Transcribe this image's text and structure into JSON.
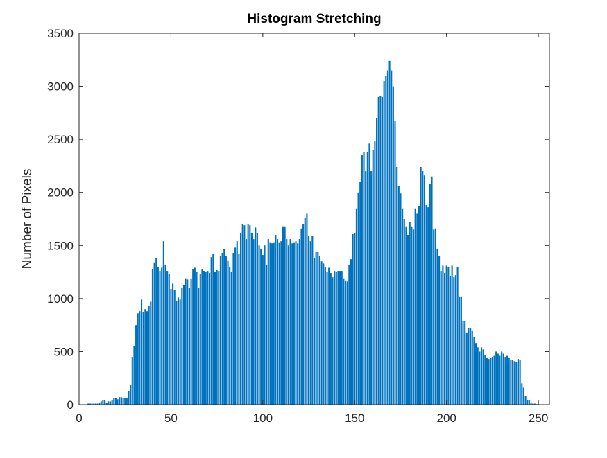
{
  "chart_data": {
    "type": "bar",
    "title": "Histogram Stretching",
    "y_label": "Number of Pixels",
    "color": "#0072bd",
    "x": [
      0,
      1,
      2,
      3,
      4,
      5,
      6,
      7,
      8,
      9,
      10,
      11,
      12,
      13,
      14,
      15,
      16,
      17,
      18,
      19,
      20,
      21,
      22,
      23,
      24,
      25,
      26,
      27,
      28,
      29,
      30,
      31,
      32,
      33,
      34,
      35,
      36,
      37,
      38,
      39,
      40,
      41,
      42,
      43,
      44,
      45,
      46,
      47,
      48,
      49,
      50,
      51,
      52,
      53,
      54,
      55,
      56,
      57,
      58,
      59,
      60,
      61,
      62,
      63,
      64,
      65,
      66,
      67,
      68,
      69,
      70,
      71,
      72,
      73,
      74,
      75,
      76,
      77,
      78,
      79,
      80,
      81,
      82,
      83,
      84,
      85,
      86,
      87,
      88,
      89,
      90,
      91,
      92,
      93,
      94,
      95,
      96,
      97,
      98,
      99,
      100,
      101,
      102,
      103,
      104,
      105,
      106,
      107,
      108,
      109,
      110,
      111,
      112,
      113,
      114,
      115,
      116,
      117,
      118,
      119,
      120,
      121,
      122,
      123,
      124,
      125,
      126,
      127,
      128,
      129,
      130,
      131,
      132,
      133,
      134,
      135,
      136,
      137,
      138,
      139,
      140,
      141,
      142,
      143,
      144,
      145,
      146,
      147,
      148,
      149,
      150,
      151,
      152,
      153,
      154,
      155,
      156,
      157,
      158,
      159,
      160,
      161,
      162,
      163,
      164,
      165,
      166,
      167,
      168,
      169,
      170,
      171,
      172,
      173,
      174,
      175,
      176,
      177,
      178,
      179,
      180,
      181,
      182,
      183,
      184,
      185,
      186,
      187,
      188,
      189,
      190,
      191,
      192,
      193,
      194,
      195,
      196,
      197,
      198,
      199,
      200,
      201,
      202,
      203,
      204,
      205,
      206,
      207,
      208,
      209,
      210,
      211,
      212,
      213,
      214,
      215,
      216,
      217,
      218,
      219,
      220,
      221,
      222,
      223,
      224,
      225,
      226,
      227,
      228,
      229,
      230,
      231,
      232,
      233,
      234,
      235,
      236,
      237,
      238,
      239,
      240,
      241,
      242,
      243,
      244,
      245,
      246,
      247,
      248,
      249,
      250,
      251,
      252,
      253,
      254,
      255
    ],
    "values": [
      0,
      0,
      0,
      0,
      0,
      10,
      10,
      10,
      10,
      10,
      10,
      20,
      30,
      40,
      40,
      20,
      30,
      30,
      40,
      60,
      60,
      50,
      70,
      70,
      60,
      60,
      60,
      130,
      190,
      450,
      550,
      750,
      860,
      880,
      990,
      870,
      900,
      880,
      930,
      970,
      1280,
      1340,
      1380,
      1300,
      1260,
      1290,
      1540,
      1320,
      1260,
      1230,
      1090,
      1140,
      1080,
      980,
      1010,
      990,
      1100,
      1130,
      1190,
      1180,
      1100,
      1190,
      1280,
      1290,
      1250,
      1100,
      1230,
      1280,
      1260,
      1250,
      1260,
      1240,
      1390,
      1420,
      1250,
      1270,
      1260,
      1400,
      1430,
      1470,
      1400,
      1360,
      1300,
      1250,
      1430,
      1480,
      1540,
      1420,
      1620,
      1700,
      1690,
      1560,
      1700,
      1690,
      1620,
      1560,
      1670,
      1620,
      1500,
      1470,
      1410,
      1500,
      1320,
      1560,
      1530,
      1520,
      1530,
      1600,
      1560,
      1530,
      1540,
      1680,
      1680,
      1560,
      1500,
      1560,
      1520,
      1530,
      1540,
      1520,
      1560,
      1660,
      1700,
      1760,
      1800,
      1590,
      1540,
      1590,
      1380,
      1440,
      1440,
      1400,
      1350,
      1330,
      1300,
      1250,
      1290,
      1240,
      1200,
      1260,
      1250,
      1260,
      1260,
      1260,
      1190,
      1170,
      1160,
      1320,
      1370,
      1610,
      1620,
      1850,
      2000,
      2100,
      2350,
      2380,
      2200,
      2380,
      2460,
      2200,
      2400,
      2480,
      2700,
      2900,
      2910,
      2900,
      3050,
      3100,
      3150,
      3240,
      3150,
      3000,
      2670,
      2240,
      2060,
      1990,
      1850,
      1750,
      1680,
      1600,
      1720,
      1680,
      1650,
      1850,
      1800,
      1870,
      2240,
      2200,
      2160,
      1880,
      1860,
      2080,
      2150,
      1650,
      1660,
      1470,
      1400,
      1260,
      1310,
      1240,
      1310,
      1300,
      1210,
      1310,
      1200,
      1220,
      1300,
      1020,
      1020,
      790,
      790,
      680,
      720,
      720,
      700,
      640,
      580,
      540,
      500,
      540,
      520,
      470,
      440,
      430,
      440,
      450,
      460,
      500,
      480,
      460,
      500,
      480,
      450,
      460,
      440,
      420,
      420,
      410,
      400,
      430,
      420,
      200,
      160,
      80,
      40,
      40,
      20,
      10,
      10,
      5,
      5,
      0,
      0,
      0,
      0,
      0
    ],
    "xlim": [
      0,
      256
    ],
    "xticks": [
      0,
      50,
      100,
      150,
      200,
      250
    ],
    "ylim": [
      0,
      3500
    ],
    "yticks": [
      0,
      500,
      1000,
      1500,
      2000,
      2500,
      3000,
      3500
    ]
  }
}
